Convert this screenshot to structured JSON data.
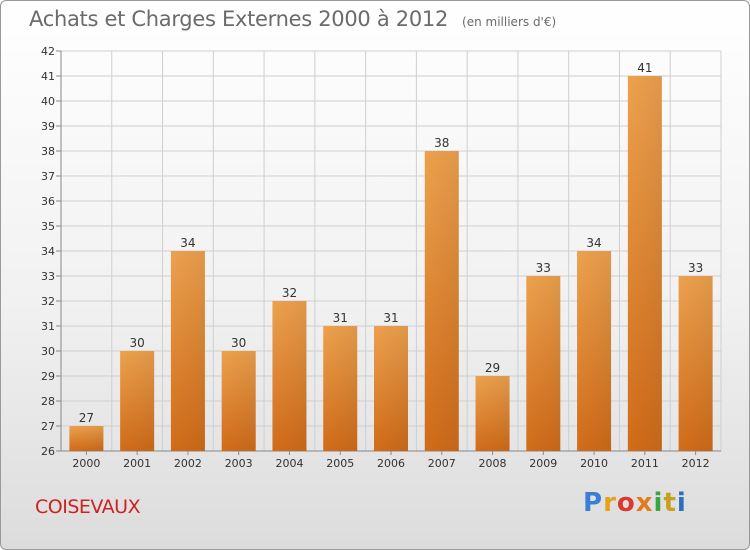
{
  "header": {
    "title": "Achats et Charges Externes 2000 à 2012",
    "subtitle": "(en milliers d'€)"
  },
  "footer": {
    "town": "COISEVAUX",
    "logo": "Proxiti",
    "logo_colors": [
      "#3a7fd4",
      "#e8a21a",
      "#d93a2b",
      "#e07c1f",
      "#3aa544",
      "#c8a020",
      "#2a6fc0"
    ]
  },
  "chart_data": {
    "type": "bar",
    "title": "Achats et Charges Externes 2000 à 2012",
    "subtitle": "(en milliers d'€)",
    "categories": [
      "2000",
      "2001",
      "2002",
      "2003",
      "2004",
      "2005",
      "2006",
      "2007",
      "2008",
      "2009",
      "2010",
      "2011",
      "2012"
    ],
    "values": [
      27,
      30,
      34,
      30,
      32,
      31,
      31,
      38,
      29,
      33,
      34,
      41,
      33
    ],
    "ylim": [
      26,
      42
    ],
    "yticks": [
      26,
      27,
      28,
      29,
      30,
      31,
      32,
      33,
      34,
      35,
      36,
      37,
      38,
      39,
      40,
      41,
      42
    ],
    "grid": true,
    "bar_color": "#ef8b2c"
  }
}
